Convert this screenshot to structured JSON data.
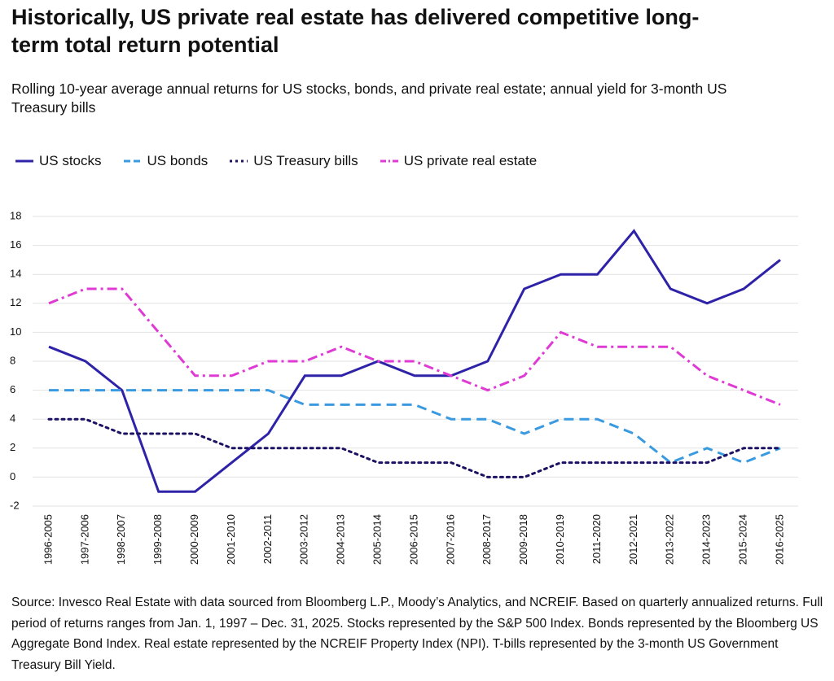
{
  "chart_data": {
    "type": "line",
    "title": "Historically, US private real estate has delivered competitive long-term total return potential",
    "subtitle": "Rolling 10-year average annual returns for US stocks, bonds, and private real estate; annual yield for 3-month US Treasury bills",
    "source": "Source: Invesco Real Estate with data sourced from Bloomberg L.P., Moody’s Analytics, and NCREIF. Based on quarterly annualized returns. Full period of returns ranges from Jan. 1, 1997 – Dec. 31, 2025. Stocks represented by the S&P 500 Index. Bonds represented by the Bloomberg US Aggregate Bond Index. Real estate represented by the NCREIF Property Index (NPI). T-bills represented by the 3-month US Government Treasury Bill Yield.",
    "categories": [
      "1996-2005",
      "1997-2006",
      "1998-2007",
      "1999-2008",
      "2000-2009",
      "2001-2010",
      "2002-2011",
      "2003-2012",
      "2004-2013",
      "2005-2014",
      "2006-2015",
      "2007-2016",
      "2008-2017",
      "2009-2018",
      "2010-2019",
      "2011-2020",
      "2012-2021",
      "2013-2022",
      "2014-2023",
      "2015-2024",
      "2016-2025"
    ],
    "series": [
      {
        "name": "US stocks",
        "color": "#2e22a8",
        "style": "solid",
        "values": [
          9,
          8,
          6,
          -1,
          -1,
          1,
          3,
          7,
          7,
          8,
          7,
          7,
          8,
          13,
          14,
          14,
          17,
          13,
          12,
          13,
          15
        ]
      },
      {
        "name": "US bonds",
        "color": "#3a9ae0",
        "style": "dashed",
        "values": [
          6,
          6,
          6,
          6,
          6,
          6,
          6,
          5,
          5,
          5,
          5,
          4,
          4,
          3,
          4,
          4,
          3,
          1,
          2,
          1,
          2
        ]
      },
      {
        "name": "US Treasury bills",
        "color": "#1c1263",
        "style": "dotted",
        "values": [
          4,
          4,
          3,
          3,
          3,
          2,
          2,
          2,
          2,
          1,
          1,
          1,
          0,
          0,
          1,
          1,
          1,
          1,
          1,
          2,
          2
        ]
      },
      {
        "name": "US private real estate",
        "color": "#e03ad4",
        "style": "dashdot",
        "values": [
          12,
          13,
          13,
          10,
          7,
          7,
          8,
          8,
          9,
          8,
          8,
          7,
          6,
          7,
          10,
          9,
          9,
          9,
          7,
          6,
          5
        ]
      }
    ],
    "ylim": [
      -2,
      18
    ],
    "yticks": [
      -2,
      0,
      2,
      4,
      6,
      8,
      10,
      12,
      14,
      16,
      18
    ],
    "grid": true
  }
}
